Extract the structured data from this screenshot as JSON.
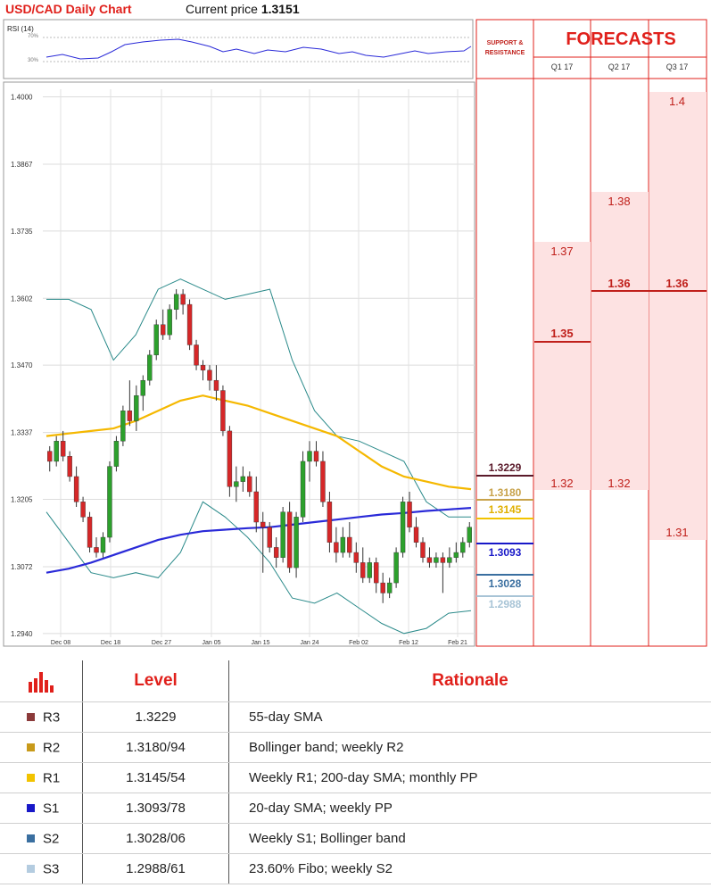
{
  "header": {
    "title": "USD/CAD Daily Chart",
    "price_prefix": "Current price",
    "price_value": "1.3151"
  },
  "rsi": {
    "label": "RSI (14)",
    "upper": "70%",
    "lower": "30%"
  },
  "forecast_panel": {
    "title": "FORECASTS",
    "sr_title_line1": "SUPPORT &",
    "sr_title_line2": "RESISTANCE",
    "quarters": [
      "Q1 17",
      "Q2 17",
      "Q3 17"
    ]
  },
  "forecasts": {
    "q1": {
      "high": "1.37",
      "mid": "1.35",
      "low": "1.32"
    },
    "q2": {
      "high": "1.38",
      "mid": "1.36",
      "low": "1.32"
    },
    "q3": {
      "high": "1.4",
      "mid": "1.36",
      "low": "1.31"
    }
  },
  "sr_levels": {
    "r3": "1.3229",
    "r2": "1.3180",
    "r1": "1.3145",
    "s1": "1.3093",
    "s2": "1.3028",
    "s3": "1.2988"
  },
  "colors": {
    "accent": "#e0201b",
    "r3": "#7b2a3a",
    "r2": "#c8a24a",
    "r1": "#f2c300",
    "s1": "#1818c8",
    "s2": "#3a6fa0",
    "s3": "#a8c4d6",
    "up": "#2ca02c",
    "down": "#d62728",
    "sma55": "#f5b800",
    "sma200": "#2a2ad8",
    "bollinger": "#2a8a8a"
  },
  "chart_data": {
    "type": "candlestick",
    "title": "USD/CAD Daily Chart",
    "ylim": [
      1.2915,
      1.4015
    ],
    "y_ticks": [
      "1.4000",
      "1.3867",
      "1.3735",
      "1.3602",
      "1.3470",
      "1.3337",
      "1.3205",
      "1.3072",
      "1.2940"
    ],
    "x_ticks": [
      "Dec 08",
      "Dec 18",
      "Dec 27",
      "Jan 05",
      "Jan 15",
      "Jan 24",
      "Feb 02",
      "Feb 12",
      "Feb 21"
    ],
    "candles": [
      [
        1.33,
        1.331,
        1.326,
        1.328
      ],
      [
        1.328,
        1.333,
        1.327,
        1.332
      ],
      [
        1.332,
        1.334,
        1.328,
        1.329
      ],
      [
        1.329,
        1.33,
        1.324,
        1.325
      ],
      [
        1.325,
        1.327,
        1.319,
        1.32
      ],
      [
        1.32,
        1.321,
        1.316,
        1.317
      ],
      [
        1.317,
        1.318,
        1.31,
        1.311
      ],
      [
        1.311,
        1.313,
        1.309,
        1.31
      ],
      [
        1.31,
        1.314,
        1.309,
        1.313
      ],
      [
        1.313,
        1.328,
        1.312,
        1.327
      ],
      [
        1.327,
        1.333,
        1.326,
        1.332
      ],
      [
        1.332,
        1.339,
        1.331,
        1.338
      ],
      [
        1.338,
        1.344,
        1.335,
        1.336
      ],
      [
        1.336,
        1.343,
        1.334,
        1.341
      ],
      [
        1.341,
        1.345,
        1.338,
        1.344
      ],
      [
        1.344,
        1.35,
        1.343,
        1.349
      ],
      [
        1.349,
        1.356,
        1.348,
        1.355
      ],
      [
        1.355,
        1.358,
        1.352,
        1.353
      ],
      [
        1.353,
        1.359,
        1.352,
        1.358
      ],
      [
        1.358,
        1.362,
        1.356,
        1.361
      ],
      [
        1.361,
        1.362,
        1.357,
        1.359
      ],
      [
        1.359,
        1.36,
        1.35,
        1.351
      ],
      [
        1.351,
        1.352,
        1.346,
        1.347
      ],
      [
        1.347,
        1.348,
        1.344,
        1.346
      ],
      [
        1.346,
        1.347,
        1.342,
        1.344
      ],
      [
        1.344,
        1.347,
        1.34,
        1.342
      ],
      [
        1.342,
        1.343,
        1.333,
        1.334
      ],
      [
        1.334,
        1.335,
        1.321,
        1.323
      ],
      [
        1.323,
        1.327,
        1.32,
        1.324
      ],
      [
        1.324,
        1.327,
        1.322,
        1.325
      ],
      [
        1.325,
        1.326,
        1.321,
        1.322
      ],
      [
        1.322,
        1.325,
        1.314,
        1.316
      ],
      [
        1.316,
        1.318,
        1.306,
        1.315
      ],
      [
        1.315,
        1.316,
        1.31,
        1.311
      ],
      [
        1.311,
        1.313,
        1.307,
        1.309
      ],
      [
        1.309,
        1.319,
        1.308,
        1.318
      ],
      [
        1.318,
        1.32,
        1.306,
        1.307
      ],
      [
        1.307,
        1.318,
        1.305,
        1.317
      ],
      [
        1.317,
        1.33,
        1.316,
        1.328
      ],
      [
        1.328,
        1.332,
        1.324,
        1.33
      ],
      [
        1.33,
        1.332,
        1.327,
        1.328
      ],
      [
        1.328,
        1.33,
        1.319,
        1.32
      ],
      [
        1.32,
        1.322,
        1.31,
        1.312
      ],
      [
        1.312,
        1.315,
        1.308,
        1.31
      ],
      [
        1.31,
        1.315,
        1.309,
        1.313
      ],
      [
        1.313,
        1.316,
        1.309,
        1.31
      ],
      [
        1.31,
        1.312,
        1.306,
        1.308
      ],
      [
        1.308,
        1.311,
        1.304,
        1.305
      ],
      [
        1.305,
        1.309,
        1.304,
        1.308
      ],
      [
        1.308,
        1.309,
        1.302,
        1.304
      ],
      [
        1.304,
        1.306,
        1.3,
        1.302
      ],
      [
        1.302,
        1.305,
        1.301,
        1.304
      ],
      [
        1.304,
        1.311,
        1.303,
        1.31
      ],
      [
        1.31,
        1.321,
        1.309,
        1.32
      ],
      [
        1.32,
        1.322,
        1.314,
        1.315
      ],
      [
        1.315,
        1.317,
        1.311,
        1.312
      ],
      [
        1.312,
        1.313,
        1.308,
        1.309
      ],
      [
        1.309,
        1.311,
        1.307,
        1.308
      ],
      [
        1.308,
        1.31,
        1.307,
        1.309
      ],
      [
        1.309,
        1.31,
        1.302,
        1.308
      ],
      [
        1.308,
        1.311,
        1.307,
        1.309
      ],
      [
        1.309,
        1.312,
        1.308,
        1.31
      ],
      [
        1.31,
        1.313,
        1.309,
        1.312
      ],
      [
        1.312,
        1.316,
        1.311,
        1.315
      ]
    ],
    "sma55": [
      1.333,
      1.3335,
      1.334,
      1.3345,
      1.336,
      1.338,
      1.34,
      1.341,
      1.34,
      1.339,
      1.3375,
      1.336,
      1.3345,
      1.333,
      1.33,
      1.327,
      1.325,
      1.324,
      1.323,
      1.3225
    ],
    "sma200": [
      1.306,
      1.3068,
      1.308,
      1.3095,
      1.311,
      1.3125,
      1.3135,
      1.3142,
      1.3145,
      1.3148,
      1.315,
      1.3155,
      1.316,
      1.3165,
      1.317,
      1.3175,
      1.3178,
      1.3182,
      1.3185,
      1.3188
    ],
    "boll_upper": [
      1.36,
      1.36,
      1.358,
      1.348,
      1.353,
      1.362,
      1.364,
      1.362,
      1.36,
      1.361,
      1.362,
      1.348,
      1.338,
      1.333,
      1.332,
      1.33,
      1.328,
      1.32,
      1.317,
      1.317
    ],
    "boll_lower": [
      1.318,
      1.312,
      1.306,
      1.305,
      1.306,
      1.305,
      1.31,
      1.32,
      1.317,
      1.313,
      1.308,
      1.301,
      1.3,
      1.302,
      1.299,
      1.296,
      1.294,
      1.295,
      1.298,
      1.2985
    ]
  },
  "table": {
    "header_level": "Level",
    "header_rationale": "Rationale",
    "rows": [
      {
        "id": "R3",
        "level": "1.3229",
        "rationale": "55-day SMA"
      },
      {
        "id": "R2",
        "level": "1.3180/94",
        "rationale": "Bollinger band; weekly R2"
      },
      {
        "id": "R1",
        "level": "1.3145/54",
        "rationale": "Weekly R1; 200-day SMA; monthly PP"
      },
      {
        "id": "S1",
        "level": "1.3093/78",
        "rationale": "20-day SMA; weekly PP"
      },
      {
        "id": "S2",
        "level": "1.3028/06",
        "rationale": "Weekly S1; Bollinger band"
      },
      {
        "id": "S3",
        "level": "1.2988/61",
        "rationale": "23.60% Fibo; weekly S2"
      }
    ]
  }
}
